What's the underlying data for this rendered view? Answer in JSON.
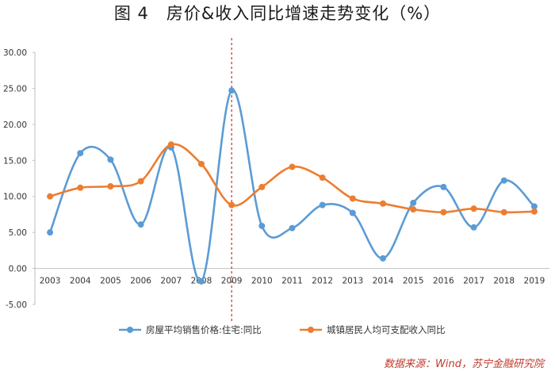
{
  "chart_data": {
    "type": "line",
    "title": "图 4　房价&收入同比增速走势变化（%）",
    "x": [
      "2003",
      "2004",
      "2005",
      "2006",
      "2007",
      "2008",
      "2009",
      "2010",
      "2011",
      "2012",
      "2013",
      "2014",
      "2015",
      "2016",
      "2017",
      "2018",
      "2019"
    ],
    "series": [
      {
        "name": "房屋平均销售价格:住宅:同比",
        "color": "#5b9bd5",
        "values": [
          5.0,
          16.0,
          15.1,
          6.1,
          16.8,
          -1.8,
          24.7,
          5.9,
          5.6,
          8.8,
          7.7,
          1.4,
          9.1,
          11.3,
          5.7,
          12.2,
          8.6
        ]
      },
      {
        "name": "城镇居民人均可支配收入同比",
        "color": "#ed7d31",
        "values": [
          10.0,
          11.2,
          11.4,
          12.1,
          17.2,
          14.5,
          8.8,
          11.3,
          14.1,
          12.6,
          9.7,
          9.0,
          8.2,
          7.8,
          8.3,
          7.8,
          7.9
        ]
      }
    ],
    "ylim": [
      -5,
      30
    ],
    "y_ticks": [
      "30.00",
      "25.00",
      "20.00",
      "15.00",
      "10.00",
      "5.00",
      "0.00",
      "-5.00"
    ],
    "grid": false,
    "marker_line_at": "2009",
    "legend_position": "bottom",
    "xlabel": "",
    "ylabel": ""
  },
  "source": "数据来源：Wind，苏宁金融研究院"
}
